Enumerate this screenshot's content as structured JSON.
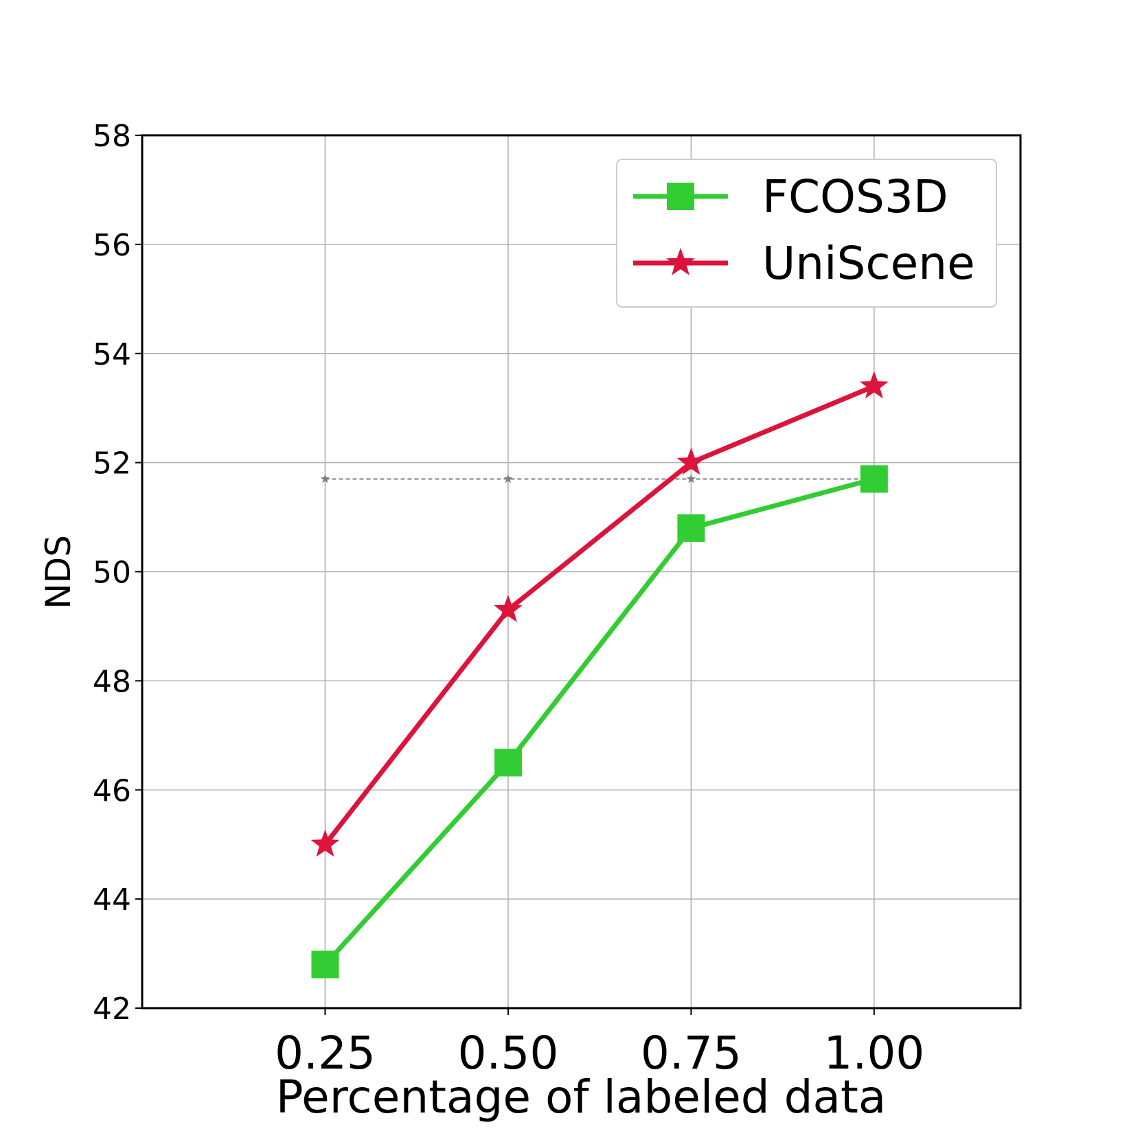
{
  "chart_data": {
    "type": "line",
    "title": "",
    "xlabel": "Percentage of labeled data",
    "ylabel": "NDS",
    "x": [
      0.25,
      0.5,
      0.75,
      1.0
    ],
    "x_tick_labels": [
      "0.25",
      "0.50",
      "0.75",
      "1.00"
    ],
    "xlim": [
      0.0,
      1.2
    ],
    "ylim": [
      42,
      58
    ],
    "y_ticks": [
      42,
      44,
      46,
      48,
      50,
      52,
      54,
      56,
      58
    ],
    "y_tick_labels": [
      "42",
      "44",
      "46",
      "48",
      "50",
      "52",
      "54",
      "56",
      "58"
    ],
    "grid": true,
    "legend_position": "top-right",
    "series": [
      {
        "name": "FCOS3D",
        "values": [
          42.8,
          46.5,
          50.8,
          51.7
        ],
        "color": "#32cd32",
        "marker": "square"
      },
      {
        "name": "UniScene",
        "values": [
          45.0,
          49.3,
          52.0,
          53.4
        ],
        "color": "#dc143c",
        "marker": "star"
      }
    ],
    "reference_line": {
      "value": 51.7,
      "color": "#808080",
      "style": "dashed",
      "marker": "star"
    }
  }
}
